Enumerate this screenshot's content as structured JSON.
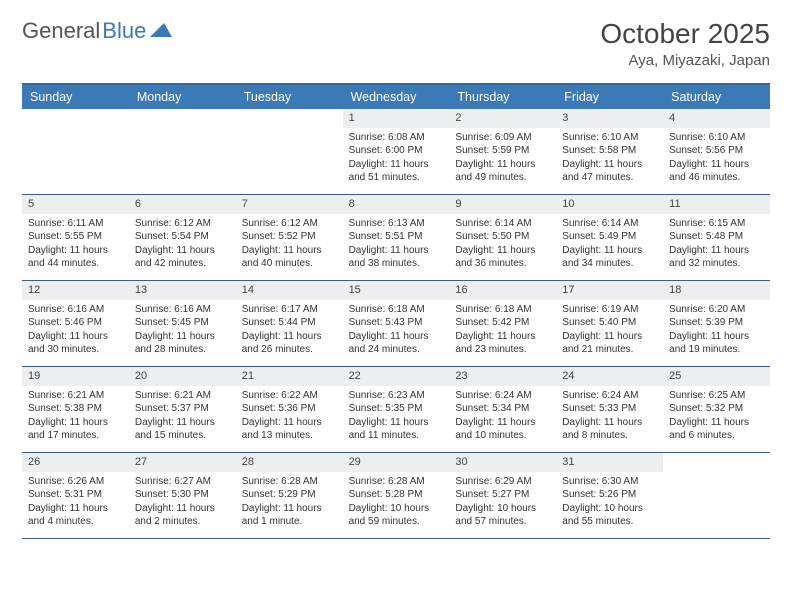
{
  "brand": {
    "name1": "General",
    "name2": "Blue"
  },
  "title": "October 2025",
  "location": "Aya, Miyazaki, Japan",
  "colors": {
    "header_bg": "#3b79b7",
    "border": "#375f8a",
    "daynum_bg": "#eceeef",
    "text": "#333333"
  },
  "weekdays": [
    "Sunday",
    "Monday",
    "Tuesday",
    "Wednesday",
    "Thursday",
    "Friday",
    "Saturday"
  ],
  "days": [
    {
      "n": "",
      "sr": "",
      "ss": "",
      "dl": ""
    },
    {
      "n": "",
      "sr": "",
      "ss": "",
      "dl": ""
    },
    {
      "n": "",
      "sr": "",
      "ss": "",
      "dl": ""
    },
    {
      "n": "1",
      "sr": "6:08 AM",
      "ss": "6:00 PM",
      "dl": "11 hours and 51 minutes."
    },
    {
      "n": "2",
      "sr": "6:09 AM",
      "ss": "5:59 PM",
      "dl": "11 hours and 49 minutes."
    },
    {
      "n": "3",
      "sr": "6:10 AM",
      "ss": "5:58 PM",
      "dl": "11 hours and 47 minutes."
    },
    {
      "n": "4",
      "sr": "6:10 AM",
      "ss": "5:56 PM",
      "dl": "11 hours and 46 minutes."
    },
    {
      "n": "5",
      "sr": "6:11 AM",
      "ss": "5:55 PM",
      "dl": "11 hours and 44 minutes."
    },
    {
      "n": "6",
      "sr": "6:12 AM",
      "ss": "5:54 PM",
      "dl": "11 hours and 42 minutes."
    },
    {
      "n": "7",
      "sr": "6:12 AM",
      "ss": "5:52 PM",
      "dl": "11 hours and 40 minutes."
    },
    {
      "n": "8",
      "sr": "6:13 AM",
      "ss": "5:51 PM",
      "dl": "11 hours and 38 minutes."
    },
    {
      "n": "9",
      "sr": "6:14 AM",
      "ss": "5:50 PM",
      "dl": "11 hours and 36 minutes."
    },
    {
      "n": "10",
      "sr": "6:14 AM",
      "ss": "5:49 PM",
      "dl": "11 hours and 34 minutes."
    },
    {
      "n": "11",
      "sr": "6:15 AM",
      "ss": "5:48 PM",
      "dl": "11 hours and 32 minutes."
    },
    {
      "n": "12",
      "sr": "6:16 AM",
      "ss": "5:46 PM",
      "dl": "11 hours and 30 minutes."
    },
    {
      "n": "13",
      "sr": "6:16 AM",
      "ss": "5:45 PM",
      "dl": "11 hours and 28 minutes."
    },
    {
      "n": "14",
      "sr": "6:17 AM",
      "ss": "5:44 PM",
      "dl": "11 hours and 26 minutes."
    },
    {
      "n": "15",
      "sr": "6:18 AM",
      "ss": "5:43 PM",
      "dl": "11 hours and 24 minutes."
    },
    {
      "n": "16",
      "sr": "6:18 AM",
      "ss": "5:42 PM",
      "dl": "11 hours and 23 minutes."
    },
    {
      "n": "17",
      "sr": "6:19 AM",
      "ss": "5:40 PM",
      "dl": "11 hours and 21 minutes."
    },
    {
      "n": "18",
      "sr": "6:20 AM",
      "ss": "5:39 PM",
      "dl": "11 hours and 19 minutes."
    },
    {
      "n": "19",
      "sr": "6:21 AM",
      "ss": "5:38 PM",
      "dl": "11 hours and 17 minutes."
    },
    {
      "n": "20",
      "sr": "6:21 AM",
      "ss": "5:37 PM",
      "dl": "11 hours and 15 minutes."
    },
    {
      "n": "21",
      "sr": "6:22 AM",
      "ss": "5:36 PM",
      "dl": "11 hours and 13 minutes."
    },
    {
      "n": "22",
      "sr": "6:23 AM",
      "ss": "5:35 PM",
      "dl": "11 hours and 11 minutes."
    },
    {
      "n": "23",
      "sr": "6:24 AM",
      "ss": "5:34 PM",
      "dl": "11 hours and 10 minutes."
    },
    {
      "n": "24",
      "sr": "6:24 AM",
      "ss": "5:33 PM",
      "dl": "11 hours and 8 minutes."
    },
    {
      "n": "25",
      "sr": "6:25 AM",
      "ss": "5:32 PM",
      "dl": "11 hours and 6 minutes."
    },
    {
      "n": "26",
      "sr": "6:26 AM",
      "ss": "5:31 PM",
      "dl": "11 hours and 4 minutes."
    },
    {
      "n": "27",
      "sr": "6:27 AM",
      "ss": "5:30 PM",
      "dl": "11 hours and 2 minutes."
    },
    {
      "n": "28",
      "sr": "6:28 AM",
      "ss": "5:29 PM",
      "dl": "11 hours and 1 minute."
    },
    {
      "n": "29",
      "sr": "6:28 AM",
      "ss": "5:28 PM",
      "dl": "10 hours and 59 minutes."
    },
    {
      "n": "30",
      "sr": "6:29 AM",
      "ss": "5:27 PM",
      "dl": "10 hours and 57 minutes."
    },
    {
      "n": "31",
      "sr": "6:30 AM",
      "ss": "5:26 PM",
      "dl": "10 hours and 55 minutes."
    },
    {
      "n": "",
      "sr": "",
      "ss": "",
      "dl": ""
    }
  ],
  "labels": {
    "sunrise": "Sunrise:",
    "sunset": "Sunset:",
    "daylight": "Daylight:"
  }
}
